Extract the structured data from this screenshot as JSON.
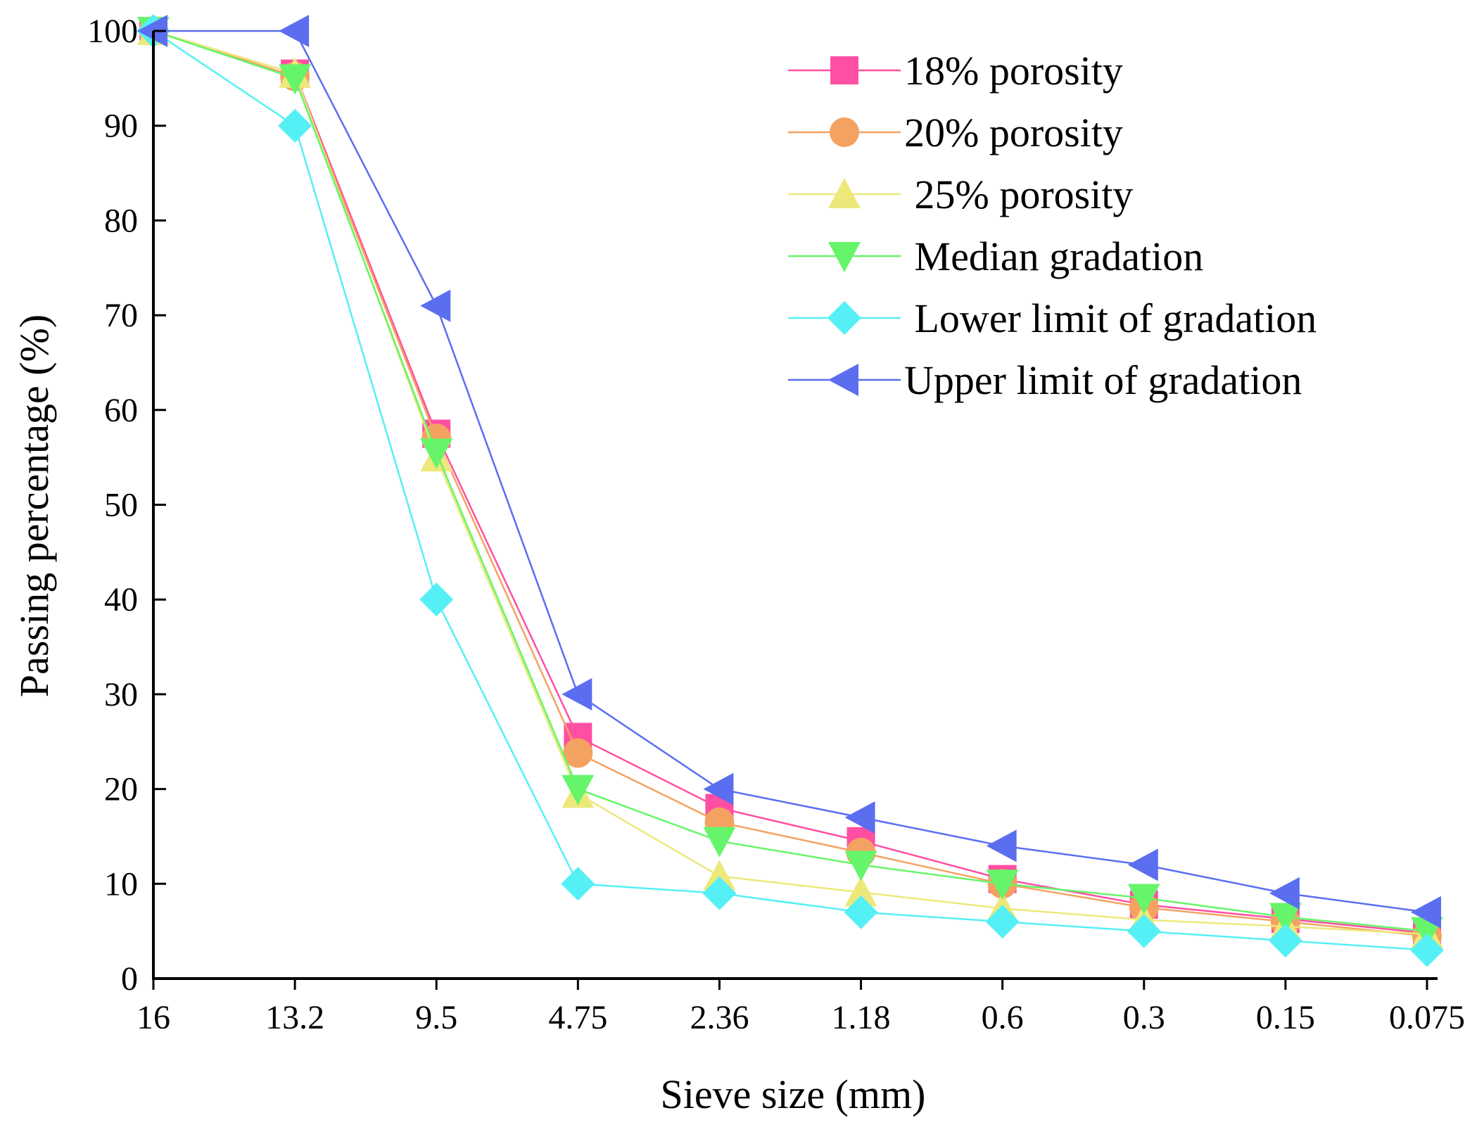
{
  "chart_data": {
    "type": "line",
    "categories": [
      "16",
      "13.2",
      "9.5",
      "4.75",
      "2.36",
      "1.18",
      "0.6",
      "0.3",
      "0.15",
      "0.075"
    ],
    "xlabel": "Sieve size (mm)",
    "ylabel": "Passing percentage (%)",
    "ylim": [
      0,
      100
    ],
    "yticks": [
      0,
      10,
      20,
      30,
      40,
      50,
      60,
      70,
      80,
      90,
      100
    ],
    "grid": false,
    "legend_position": "top-right",
    "series": [
      {
        "name": "18% porosity",
        "color": "#ff4fa3",
        "marker": "square",
        "values": [
          100,
          95.5,
          57.5,
          25.5,
          18,
          14.5,
          10.5,
          7.8,
          6.3,
          4.8
        ]
      },
      {
        "name": "20% porosity",
        "color": "#f4a261",
        "marker": "circle",
        "values": [
          100,
          95.2,
          57,
          23.8,
          16.5,
          13.3,
          10,
          7.5,
          6,
          4.5
        ]
      },
      {
        "name": " 25% porosity",
        "color": "#ede87a",
        "marker": "triangle-up",
        "values": [
          100,
          95.5,
          55,
          19.5,
          10.8,
          9.1,
          7.4,
          6.2,
          5.5,
          4.7
        ]
      },
      {
        "name": " Median gradation",
        "color": "#66f56a",
        "marker": "triangle-down",
        "values": [
          100,
          95,
          55.5,
          20,
          14.5,
          12,
          10,
          8.5,
          6.5,
          5
        ]
      },
      {
        "name": " Lower limit of gradation",
        "color": "#55f0f5",
        "marker": "diamond",
        "values": [
          100,
          90,
          40,
          10,
          9,
          7,
          6,
          5,
          4,
          3
        ]
      },
      {
        "name": "Upper limit of gradation",
        "color": "#5b6ef0",
        "marker": "triangle-left",
        "values": [
          100,
          100,
          71,
          30,
          20,
          17,
          14,
          12,
          9,
          7
        ]
      }
    ]
  }
}
